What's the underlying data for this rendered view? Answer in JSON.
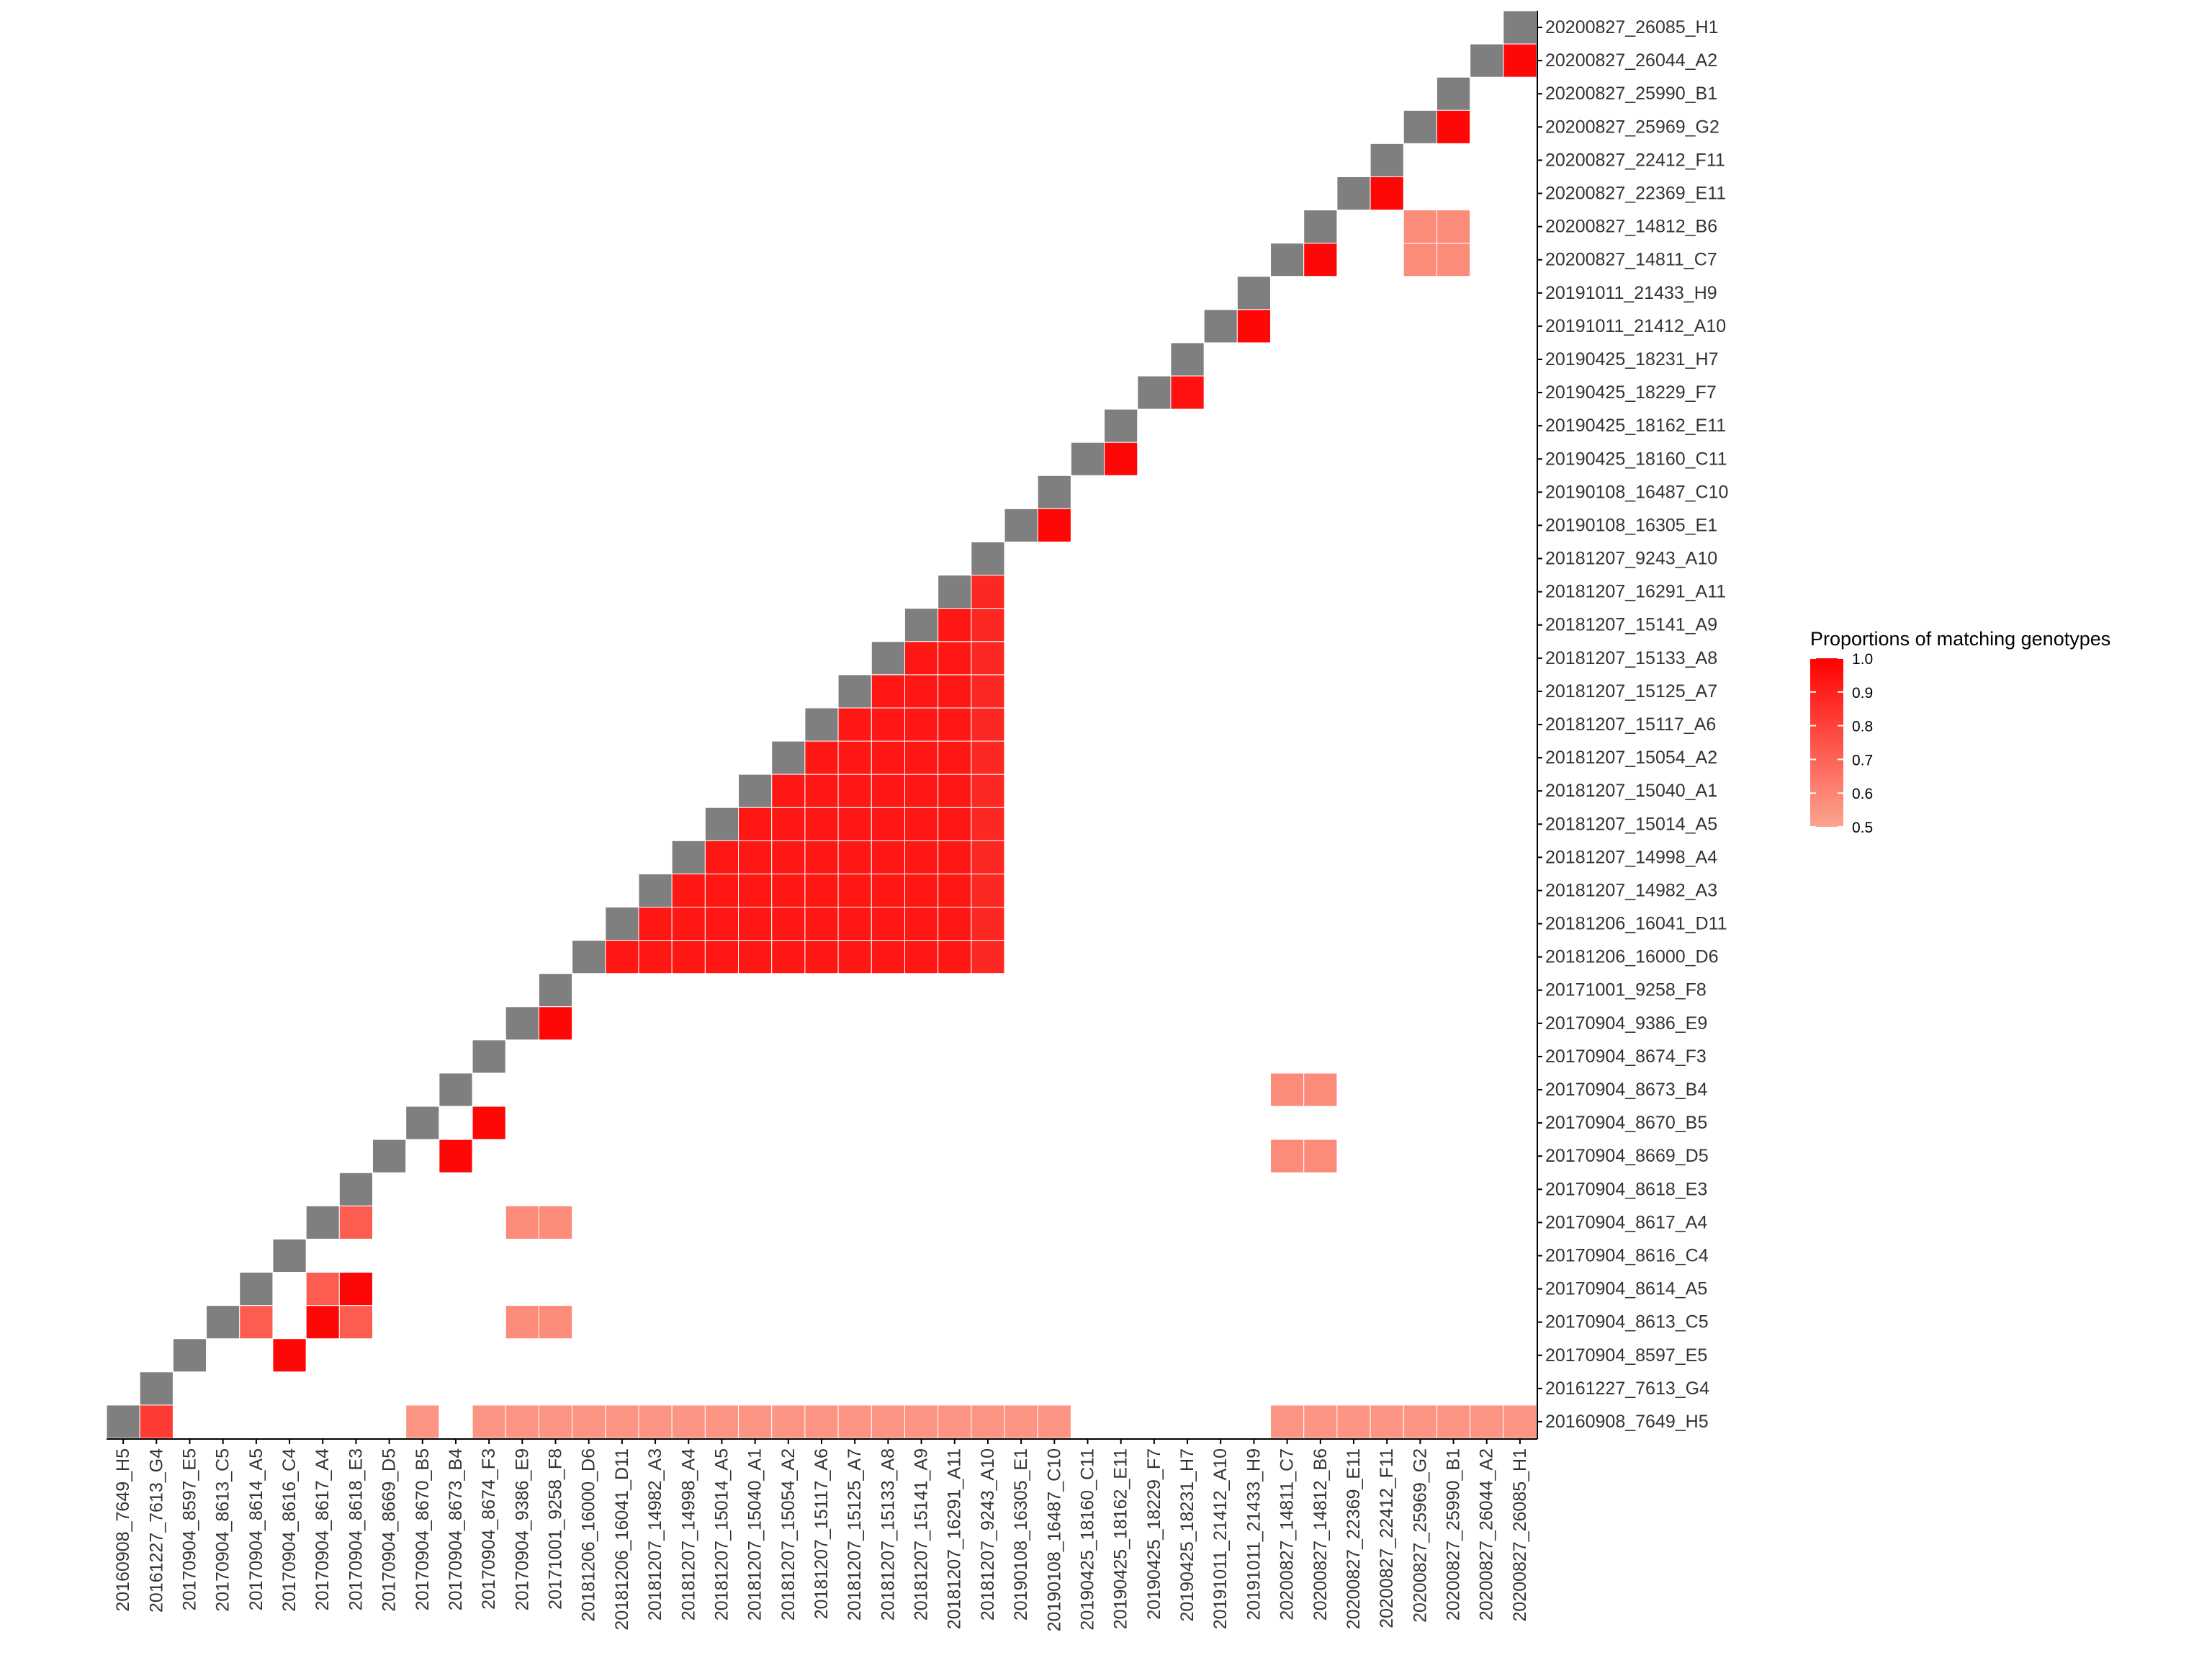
{
  "chart_data": {
    "type": "heatmap",
    "title": "",
    "xlabel": "",
    "ylabel": "",
    "samples": [
      "20160908_7649_H5",
      "20161227_7613_G4",
      "20170904_8597_E5",
      "20170904_8613_C5",
      "20170904_8614_A5",
      "20170904_8616_C4",
      "20170904_8617_A4",
      "20170904_8618_E3",
      "20170904_8669_D5",
      "20170904_8670_B5",
      "20170904_8673_B4",
      "20170904_8674_F3",
      "20170904_9386_E9",
      "20171001_9258_F8",
      "20181206_16000_D6",
      "20181206_16041_D11",
      "20181207_14982_A3",
      "20181207_14998_A4",
      "20181207_15014_A5",
      "20181207_15040_A1",
      "20181207_15054_A2",
      "20181207_15117_A6",
      "20181207_15125_A7",
      "20181207_15133_A8",
      "20181207_15141_A9",
      "20181207_16291_A11",
      "20181207_9243_A10",
      "20190108_16305_E1",
      "20190108_16487_C10",
      "20190425_18160_C11",
      "20190425_18162_E11",
      "20190425_18229_F7",
      "20190425_18231_H7",
      "20191011_21412_A10",
      "20191011_21433_H9",
      "20200827_14811_C7",
      "20200827_14812_B6",
      "20200827_22369_E11",
      "20200827_22412_F11",
      "20200827_25969_G2",
      "20200827_25990_B1",
      "20200827_26044_A2",
      "20200827_26085_H1"
    ],
    "cells": [
      {
        "x": "20161227_7613_G4",
        "y": "20160908_7649_H5",
        "value": 0.82
      },
      {
        "x": "20170904_8670_B5",
        "y": "20160908_7649_H5",
        "value": 0.55
      },
      {
        "x": "20170904_8674_F3",
        "y": "20160908_7649_H5",
        "value": 0.55
      },
      {
        "x": "20170904_9386_E9",
        "y": "20160908_7649_H5",
        "value": 0.55
      },
      {
        "x": "20171001_9258_F8",
        "y": "20160908_7649_H5",
        "value": 0.55
      },
      {
        "x": "20181206_16000_D6",
        "y": "20160908_7649_H5",
        "value": 0.55
      },
      {
        "x": "20181206_16041_D11",
        "y": "20160908_7649_H5",
        "value": 0.55
      },
      {
        "x": "20181207_14982_A3",
        "y": "20160908_7649_H5",
        "value": 0.55
      },
      {
        "x": "20181207_14998_A4",
        "y": "20160908_7649_H5",
        "value": 0.55
      },
      {
        "x": "20181207_15014_A5",
        "y": "20160908_7649_H5",
        "value": 0.55
      },
      {
        "x": "20181207_15040_A1",
        "y": "20160908_7649_H5",
        "value": 0.55
      },
      {
        "x": "20181207_15054_A2",
        "y": "20160908_7649_H5",
        "value": 0.55
      },
      {
        "x": "20181207_15117_A6",
        "y": "20160908_7649_H5",
        "value": 0.55
      },
      {
        "x": "20181207_15125_A7",
        "y": "20160908_7649_H5",
        "value": 0.55
      },
      {
        "x": "20181207_15133_A8",
        "y": "20160908_7649_H5",
        "value": 0.55
      },
      {
        "x": "20181207_15141_A9",
        "y": "20160908_7649_H5",
        "value": 0.55
      },
      {
        "x": "20181207_16291_A11",
        "y": "20160908_7649_H5",
        "value": 0.55
      },
      {
        "x": "20181207_9243_A10",
        "y": "20160908_7649_H5",
        "value": 0.55
      },
      {
        "x": "20190108_16305_E1",
        "y": "20160908_7649_H5",
        "value": 0.55
      },
      {
        "x": "20190108_16487_C10",
        "y": "20160908_7649_H5",
        "value": 0.55
      },
      {
        "x": "20200827_14811_C7",
        "y": "20160908_7649_H5",
        "value": 0.55
      },
      {
        "x": "20200827_14812_B6",
        "y": "20160908_7649_H5",
        "value": 0.55
      },
      {
        "x": "20200827_22369_E11",
        "y": "20160908_7649_H5",
        "value": 0.55
      },
      {
        "x": "20200827_22412_F11",
        "y": "20160908_7649_H5",
        "value": 0.55
      },
      {
        "x": "20200827_25969_G2",
        "y": "20160908_7649_H5",
        "value": 0.55
      },
      {
        "x": "20200827_25990_B1",
        "y": "20160908_7649_H5",
        "value": 0.55
      },
      {
        "x": "20200827_26044_A2",
        "y": "20160908_7649_H5",
        "value": 0.55
      },
      {
        "x": "20200827_26085_H1",
        "y": "20160908_7649_H5",
        "value": 0.55
      },
      {
        "x": "20170904_8616_C4",
        "y": "20170904_8597_E5",
        "value": 0.98
      },
      {
        "x": "20170904_8614_A5",
        "y": "20170904_8613_C5",
        "value": 0.72
      },
      {
        "x": "20170904_8617_A4",
        "y": "20170904_8613_C5",
        "value": 0.98
      },
      {
        "x": "20170904_8618_E3",
        "y": "20170904_8613_C5",
        "value": 0.72
      },
      {
        "x": "20170904_9386_E9",
        "y": "20170904_8613_C5",
        "value": 0.58
      },
      {
        "x": "20171001_9258_F8",
        "y": "20170904_8613_C5",
        "value": 0.58
      },
      {
        "x": "20170904_8617_A4",
        "y": "20170904_8614_A5",
        "value": 0.72
      },
      {
        "x": "20170904_8618_E3",
        "y": "20170904_8614_A5",
        "value": 0.98
      },
      {
        "x": "20170904_8618_E3",
        "y": "20170904_8617_A4",
        "value": 0.72
      },
      {
        "x": "20170904_9386_E9",
        "y": "20170904_8617_A4",
        "value": 0.58
      },
      {
        "x": "20171001_9258_F8",
        "y": "20170904_8617_A4",
        "value": 0.58
      },
      {
        "x": "20170904_8673_B4",
        "y": "20170904_8669_D5",
        "value": 0.98
      },
      {
        "x": "20200827_14811_C7",
        "y": "20170904_8669_D5",
        "value": 0.58
      },
      {
        "x": "20200827_14812_B6",
        "y": "20170904_8669_D5",
        "value": 0.58
      },
      {
        "x": "20170904_8674_F3",
        "y": "20170904_8670_B5",
        "value": 0.98
      },
      {
        "x": "20200827_14811_C7",
        "y": "20170904_8673_B4",
        "value": 0.58
      },
      {
        "x": "20200827_14812_B6",
        "y": "20170904_8673_B4",
        "value": 0.58
      },
      {
        "x": "20171001_9258_F8",
        "y": "20170904_9386_E9",
        "value": 0.98
      },
      {
        "x": "20190108_16487_C10",
        "y": "20190108_16305_E1",
        "value": 0.98
      },
      {
        "x": "20190425_18162_E11",
        "y": "20190425_18160_C11",
        "value": 0.98
      },
      {
        "x": "20190425_18231_H7",
        "y": "20190425_18229_F7",
        "value": 0.95
      },
      {
        "x": "20191011_21433_H9",
        "y": "20191011_21412_A10",
        "value": 0.98
      },
      {
        "x": "20200827_14812_B6",
        "y": "20200827_14811_C7",
        "value": 0.98
      },
      {
        "x": "20200827_25969_G2",
        "y": "20200827_14811_C7",
        "value": 0.58
      },
      {
        "x": "20200827_25990_B1",
        "y": "20200827_14811_C7",
        "value": 0.58
      },
      {
        "x": "20200827_25969_G2",
        "y": "20200827_14812_B6",
        "value": 0.58
      },
      {
        "x": "20200827_25990_B1",
        "y": "20200827_14812_B6",
        "value": 0.58
      },
      {
        "x": "20200827_22412_F11",
        "y": "20200827_22369_E11",
        "value": 0.98
      },
      {
        "x": "20200827_25990_B1",
        "y": "20200827_25969_G2",
        "value": 0.98
      },
      {
        "x": "20200827_26085_H1",
        "y": "20200827_26044_A2",
        "value": 0.98
      }
    ],
    "block": {
      "samples": [
        "20181206_16000_D6",
        "20181206_16041_D11",
        "20181207_14982_A3",
        "20181207_14998_A4",
        "20181207_15014_A5",
        "20181207_15040_A1",
        "20181207_15054_A2",
        "20181207_15117_A6",
        "20181207_15125_A7",
        "20181207_15133_A8",
        "20181207_15141_A9",
        "20181207_16291_A11",
        "20181207_9243_A10"
      ],
      "value": 0.93,
      "last_column_value": 0.88
    },
    "diagonal_color": "#7f7f7f",
    "legend": {
      "title": "Proportions of matching genotypes",
      "ticks": [
        "1.0",
        "0.9",
        "0.8",
        "0.7",
        "0.6",
        "0.5"
      ],
      "low": 0.5,
      "high": 1.0,
      "low_color": "#fca591",
      "high_color": "#ff0000",
      "position": "right"
    },
    "grid": false
  }
}
